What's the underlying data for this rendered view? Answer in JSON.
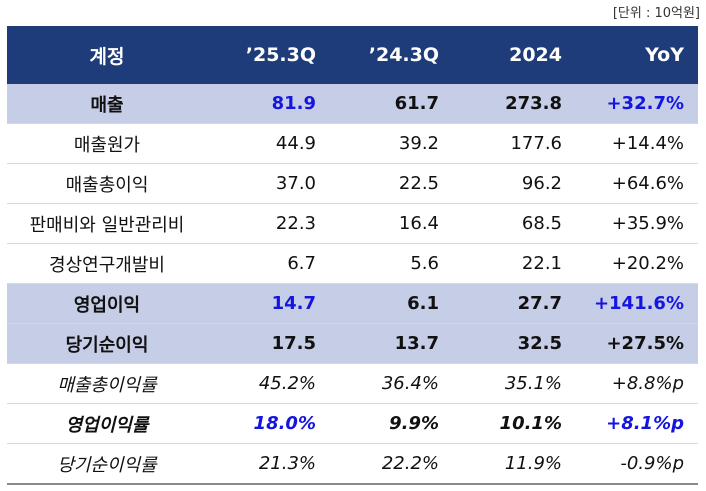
{
  "unit_label": "[단위 : 10억원]",
  "header": [
    "계정",
    "’25.3Q",
    "’24.3Q",
    "2024",
    "YoY"
  ],
  "rows": [
    {
      "account": "매출",
      "q25": "81.9",
      "q24": "61.7",
      "y2024": "273.8",
      "yoy": "+32.7%"
    },
    {
      "account": "매출원가",
      "q25": "44.9",
      "q24": "39.2",
      "y2024": "177.6",
      "yoy": "+14.4%"
    },
    {
      "account": "매출총이익",
      "q25": "37.0",
      "q24": "22.5",
      "y2024": "96.2",
      "yoy": "+64.6%"
    },
    {
      "account": "판매비와 일반관리비",
      "q25": "22.3",
      "q24": "16.4",
      "y2024": "68.5",
      "yoy": "+35.9%"
    },
    {
      "account": "경상연구개발비",
      "q25": "6.7",
      "q24": "5.6",
      "y2024": "22.1",
      "yoy": "+20.2%"
    },
    {
      "account": "영업이익",
      "q25": "14.7",
      "q24": "6.1",
      "y2024": "27.7",
      "yoy": "+141.6%"
    },
    {
      "account": "당기순이익",
      "q25": "17.5",
      "q24": "13.7",
      "y2024": "32.5",
      "yoy": "+27.5%"
    },
    {
      "account": "매출총이익률",
      "q25": "45.2%",
      "q24": "36.4%",
      "y2024": "35.1%",
      "yoy": "+8.8%p"
    },
    {
      "account": "영업이익률",
      "q25": "18.0%",
      "q24": "9.9%",
      "y2024": "10.1%",
      "yoy": "+8.1%p"
    },
    {
      "account": "당기순이익률",
      "q25": "21.3%",
      "q24": "22.2%",
      "y2024": "11.9%",
      "yoy": "-0.9%p"
    }
  ],
  "colors": {
    "header_bg": "#1f3c7a",
    "highlight_bg": "#c6cde6",
    "emphasis_text": "#1515e0"
  }
}
